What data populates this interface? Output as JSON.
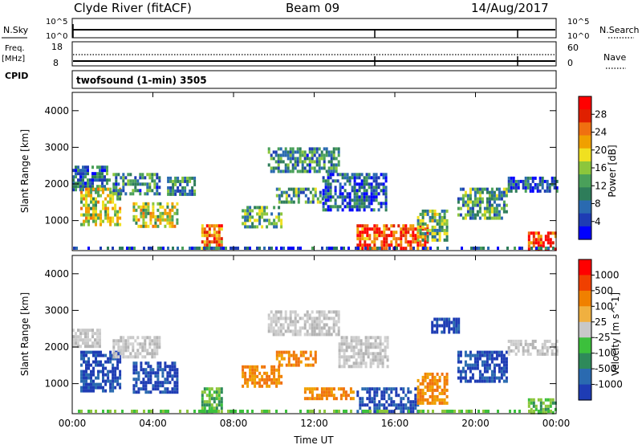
{
  "header": {
    "station": "Clyde River (fitACF)",
    "beam": "Beam 09",
    "date": "14/Aug/2017"
  },
  "panels": {
    "nsky": {
      "left_label": "N.Sky",
      "left_ticks": [
        "10^5",
        "10^0"
      ],
      "right_label": "N.Search",
      "right_ticks": [
        "10^5",
        "10^0"
      ]
    },
    "freq": {
      "left_label": "Freq.",
      "left_unit": "[MHz]",
      "left_ticks": [
        "18",
        "8"
      ],
      "right_label": "Nave",
      "right_ticks": [
        "60",
        "0"
      ]
    },
    "cpid": {
      "label": "CPID",
      "value": "twofsound (1-min) 3505"
    }
  },
  "chart_data": [
    {
      "type": "heatmap",
      "title": "",
      "quantity": "Power",
      "colorbar_label": "Power [dB]",
      "colorbar_ticks": [
        "28",
        "24",
        "20",
        "16",
        "12",
        "8",
        "4"
      ],
      "colorbar_colors": [
        "#0000ff",
        "#1e3cb4",
        "#2a6ab0",
        "#2e7d5a",
        "#4aa05a",
        "#8cc63c",
        "#f0e020",
        "#f0a000",
        "#f07010",
        "#e02000",
        "#ff0000"
      ],
      "ylabel": "Slant Range [km]",
      "yticks": [
        "4000",
        "3000",
        "2000",
        "1000"
      ],
      "ylim": [
        180,
        4500
      ],
      "xlim": [
        0,
        24
      ],
      "xlabel": "",
      "regions": [
        {
          "t0": 0.0,
          "t1": 1.9,
          "r0": 1800,
          "r1": 2500,
          "level": 0.25
        },
        {
          "t0": 0.4,
          "t1": 2.4,
          "r0": 900,
          "r1": 1900,
          "level": 0.55
        },
        {
          "t0": 2.0,
          "t1": 4.3,
          "r0": 1700,
          "r1": 2300,
          "level": 0.3
        },
        {
          "t0": 3.0,
          "t1": 5.2,
          "r0": 800,
          "r1": 1500,
          "level": 0.55
        },
        {
          "t0": 4.7,
          "t1": 6.1,
          "r0": 1700,
          "r1": 2200,
          "level": 0.3
        },
        {
          "t0": 6.4,
          "t1": 7.4,
          "r0": 250,
          "r1": 900,
          "level": 0.75
        },
        {
          "t0": 8.4,
          "t1": 10.4,
          "r0": 800,
          "r1": 1400,
          "level": 0.4
        },
        {
          "t0": 9.7,
          "t1": 13.2,
          "r0": 2300,
          "r1": 3000,
          "level": 0.3
        },
        {
          "t0": 10.1,
          "t1": 12.4,
          "r0": 1500,
          "r1": 1900,
          "level": 0.35
        },
        {
          "t0": 12.4,
          "t1": 15.6,
          "r0": 1300,
          "r1": 2300,
          "level": 0.2
        },
        {
          "t0": 14.1,
          "t1": 17.6,
          "r0": 200,
          "r1": 900,
          "level": 0.85
        },
        {
          "t0": 17.1,
          "t1": 18.6,
          "r0": 500,
          "r1": 1300,
          "level": 0.45
        },
        {
          "t0": 19.1,
          "t1": 21.6,
          "r0": 1100,
          "r1": 1900,
          "level": 0.35
        },
        {
          "t0": 21.6,
          "t1": 24.0,
          "r0": 1800,
          "r1": 2200,
          "level": 0.2
        },
        {
          "t0": 22.6,
          "t1": 24.0,
          "r0": 200,
          "r1": 700,
          "level": 0.9
        }
      ]
    },
    {
      "type": "heatmap",
      "title": "",
      "quantity": "Velocity",
      "colorbar_label": "Velocity [m s^-1]",
      "colorbar_ticks": [
        "1000",
        "500",
        "100",
        "25",
        "-25",
        "-100",
        "-500",
        "-1000"
      ],
      "colorbar_colors": [
        "#1e3cb4",
        "#2a6ab0",
        "#2e8a5a",
        "#3cc03c",
        "#c8c8c8",
        "#f0b040",
        "#f08000",
        "#f04000",
        "#ff0000"
      ],
      "ylabel": "Slant Range [km]",
      "yticks": [
        "4000",
        "3000",
        "2000",
        "1000"
      ],
      "ylim": [
        180,
        4500
      ],
      "xlim": [
        0,
        24
      ],
      "xlabel": "Time UT",
      "xticks": [
        "00:00",
        "04:00",
        "08:00",
        "12:00",
        "16:00",
        "20:00",
        "00:00"
      ],
      "regions": [
        {
          "t0": 0.0,
          "t1": 1.4,
          "r0": 2000,
          "r1": 2500,
          "v": "grey"
        },
        {
          "t0": 0.4,
          "t1": 2.4,
          "r0": 800,
          "r1": 1900,
          "v": "blue"
        },
        {
          "t0": 2.0,
          "t1": 4.3,
          "r0": 1700,
          "r1": 2300,
          "v": "grey"
        },
        {
          "t0": 3.0,
          "t1": 5.2,
          "r0": 800,
          "r1": 1600,
          "v": "blue"
        },
        {
          "t0": 6.4,
          "t1": 7.4,
          "r0": 250,
          "r1": 900,
          "v": "green"
        },
        {
          "t0": 8.4,
          "t1": 10.4,
          "r0": 900,
          "r1": 1500,
          "v": "orange"
        },
        {
          "t0": 10.1,
          "t1": 12.1,
          "r0": 1500,
          "r1": 1900,
          "v": "orange"
        },
        {
          "t0": 9.7,
          "t1": 13.2,
          "r0": 2300,
          "r1": 3000,
          "v": "grey"
        },
        {
          "t0": 11.5,
          "t1": 14.0,
          "r0": 600,
          "r1": 900,
          "v": "orange"
        },
        {
          "t0": 13.2,
          "t1": 15.6,
          "r0": 1500,
          "r1": 2300,
          "v": "grey"
        },
        {
          "t0": 14.1,
          "t1": 17.1,
          "r0": 200,
          "r1": 900,
          "v": "blue"
        },
        {
          "t0": 17.1,
          "t1": 18.6,
          "r0": 500,
          "r1": 1300,
          "v": "orange"
        },
        {
          "t0": 17.8,
          "t1": 19.2,
          "r0": 2400,
          "r1": 2800,
          "v": "blue"
        },
        {
          "t0": 19.1,
          "t1": 21.6,
          "r0": 1100,
          "r1": 1900,
          "v": "blue"
        },
        {
          "t0": 21.6,
          "t1": 24.0,
          "r0": 1800,
          "r1": 2200,
          "v": "grey"
        },
        {
          "t0": 22.6,
          "t1": 24.0,
          "r0": 200,
          "r1": 600,
          "v": "green"
        }
      ]
    }
  ]
}
